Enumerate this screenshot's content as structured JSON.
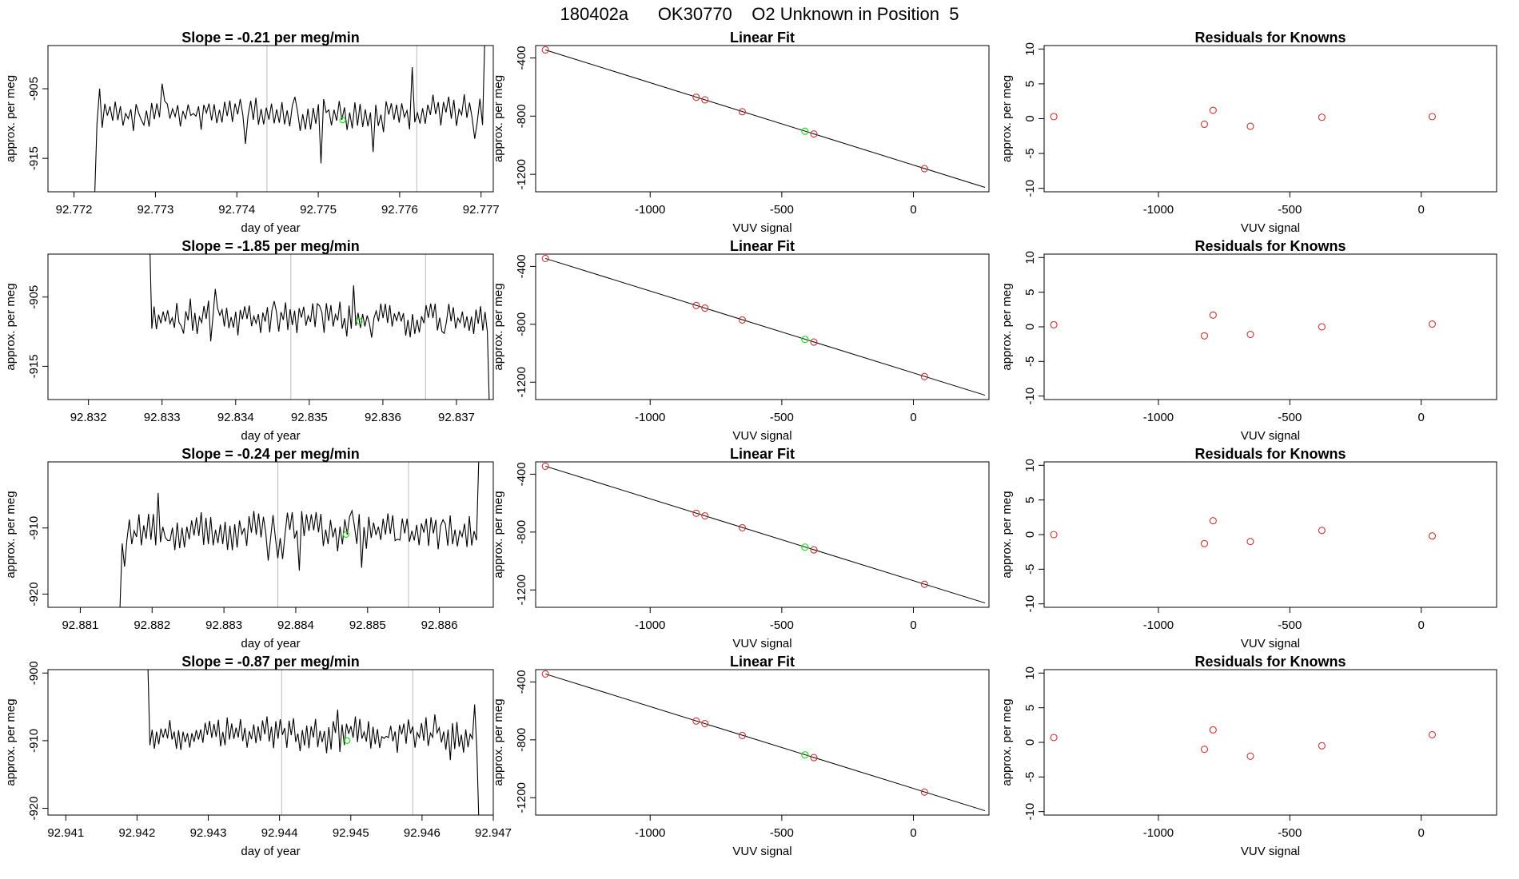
{
  "page_title": "180402a      OK30770    O2 Unknown in Position  5",
  "colors": {
    "line": "#000000",
    "known": "#cc3333",
    "unknown": "#22dd22",
    "vline": "#bbbbbb",
    "axis": "#000000"
  },
  "chart_data": [
    {
      "row": 1,
      "timeseries": {
        "type": "line",
        "title": "Slope =  -0.21  per meg/min",
        "xlabel": "day of year",
        "ylabel": "approx. per meg",
        "xlim": [
          92.77168,
          92.77715
        ],
        "ylim": [
          -919.8,
          -898.8
        ],
        "xticks": [
          "92.772",
          "92.773",
          "92.774",
          "92.775",
          "92.776",
          "92.777"
        ],
        "yticks": [
          "-905",
          "-915"
        ],
        "x_start": 92.77225,
        "x_end": 92.77705,
        "baseline": -908.5,
        "amplitude": 3.5,
        "seed": 11,
        "start_y": -922,
        "end_y": -896,
        "vlines": [
          92.77437,
          92.77621
        ],
        "unknown_point": {
          "x": 92.7753,
          "y": -909.5
        }
      },
      "linear_fit": {
        "type": "scatter",
        "title": "Linear Fit",
        "xlabel": "VUV signal",
        "ylabel": "approx. per meg",
        "xlim": [
          -1435,
          287
        ],
        "ylim": [
          -1320,
          -315
        ],
        "xticks": [
          "-1000",
          "-500",
          "0"
        ],
        "yticks": [
          "-400",
          "-800",
          "-1200"
        ],
        "fit_line": {
          "x1": -1398,
          "y1": -345,
          "x2": 272,
          "y2": -1290
        },
        "known_points": [
          {
            "x": -1398,
            "y": -345
          },
          {
            "x": -825,
            "y": -670
          },
          {
            "x": -792,
            "y": -688
          },
          {
            "x": -650,
            "y": -770
          },
          {
            "x": -378,
            "y": -923
          },
          {
            "x": 42,
            "y": -1161
          }
        ],
        "unknown_point": {
          "x": -412,
          "y": -904
        }
      },
      "residuals": {
        "type": "scatter",
        "title": "Residuals for Knowns",
        "xlabel": "VUV signal",
        "ylabel": "approx. per meg",
        "xlim": [
          -1435,
          287
        ],
        "ylim": [
          -10.5,
          10.5
        ],
        "xticks": [
          "-1000",
          "-500",
          "0"
        ],
        "yticks": [
          "10",
          "5",
          "0",
          "-5",
          "-10"
        ],
        "points": [
          {
            "x": -1398,
            "y": 0.3
          },
          {
            "x": -825,
            "y": -0.8
          },
          {
            "x": -792,
            "y": 1.2
          },
          {
            "x": -650,
            "y": -1.1
          },
          {
            "x": -378,
            "y": 0.2
          },
          {
            "x": 42,
            "y": 0.3
          }
        ]
      }
    },
    {
      "row": 2,
      "timeseries": {
        "type": "line",
        "title": "Slope =  -1.85  per meg/min",
        "xlabel": "day of year",
        "ylabel": "approx. per meg",
        "xlim": [
          92.83145,
          92.8375
        ],
        "ylim": [
          -919.8,
          -898.8
        ],
        "xticks": [
          "92.832",
          "92.833",
          "92.834",
          "92.835",
          "92.836",
          "92.837"
        ],
        "yticks": [
          "-905",
          "-915"
        ],
        "x_start": 92.83283,
        "x_end": 92.83745,
        "baseline": -908.0,
        "amplitude": 3.6,
        "seed": 23,
        "start_y": -896,
        "end_y": -922,
        "vlines": [
          92.83475,
          92.83658
        ],
        "unknown_point": {
          "x": 92.83568,
          "y": -908.5
        }
      },
      "linear_fit": {
        "type": "scatter",
        "title": "Linear Fit",
        "xlabel": "VUV signal",
        "ylabel": "approx. per meg",
        "xlim": [
          -1435,
          287
        ],
        "ylim": [
          -1320,
          -315
        ],
        "xticks": [
          "-1000",
          "-500",
          "0"
        ],
        "yticks": [
          "-400",
          "-800",
          "-1200"
        ],
        "fit_line": {
          "x1": -1398,
          "y1": -345,
          "x2": 272,
          "y2": -1290
        },
        "known_points": [
          {
            "x": -1398,
            "y": -345
          },
          {
            "x": -825,
            "y": -670
          },
          {
            "x": -792,
            "y": -688
          },
          {
            "x": -650,
            "y": -770
          },
          {
            "x": -378,
            "y": -923
          },
          {
            "x": 42,
            "y": -1161
          }
        ],
        "unknown_point": {
          "x": -412,
          "y": -904
        }
      },
      "residuals": {
        "type": "scatter",
        "title": "Residuals for Knowns",
        "xlabel": "VUV signal",
        "ylabel": "approx. per meg",
        "xlim": [
          -1435,
          287
        ],
        "ylim": [
          -10.5,
          10.5
        ],
        "xticks": [
          "-1000",
          "-500",
          "0"
        ],
        "yticks": [
          "10",
          "5",
          "0",
          "-5",
          "-10"
        ],
        "points": [
          {
            "x": -1398,
            "y": 0.3
          },
          {
            "x": -825,
            "y": -1.3
          },
          {
            "x": -792,
            "y": 1.7
          },
          {
            "x": -650,
            "y": -1.1
          },
          {
            "x": -378,
            "y": 0.0
          },
          {
            "x": 42,
            "y": 0.4
          }
        ]
      }
    },
    {
      "row": 3,
      "timeseries": {
        "type": "line",
        "title": "Slope =  -0.24  per meg/min",
        "xlabel": "day of year",
        "ylabel": "approx. per meg",
        "xlim": [
          92.88055,
          92.88675
        ],
        "ylim": [
          -922,
          -900
        ],
        "xticks": [
          "92.881",
          "92.882",
          "92.883",
          "92.884",
          "92.885",
          "92.886"
        ],
        "yticks": [
          "-910",
          "-920"
        ],
        "x_start": 92.88155,
        "x_end": 92.88655,
        "baseline": -910.5,
        "amplitude": 4.2,
        "seed": 37,
        "start_y": -923,
        "end_y": -899,
        "vlines": [
          92.88375,
          92.88557
        ],
        "unknown_point": {
          "x": 92.8847,
          "y": -911.0
        }
      },
      "linear_fit": {
        "type": "scatter",
        "title": "Linear Fit",
        "xlabel": "VUV signal",
        "ylabel": "approx. per meg",
        "xlim": [
          -1435,
          287
        ],
        "ylim": [
          -1320,
          -315
        ],
        "xticks": [
          "-1000",
          "-500",
          "0"
        ],
        "yticks": [
          "-400",
          "-800",
          "-1200"
        ],
        "fit_line": {
          "x1": -1398,
          "y1": -345,
          "x2": 272,
          "y2": -1290
        },
        "known_points": [
          {
            "x": -1398,
            "y": -345
          },
          {
            "x": -825,
            "y": -670
          },
          {
            "x": -792,
            "y": -688
          },
          {
            "x": -650,
            "y": -770
          },
          {
            "x": -378,
            "y": -923
          },
          {
            "x": 42,
            "y": -1161
          }
        ],
        "unknown_point": {
          "x": -412,
          "y": -904
        }
      },
      "residuals": {
        "type": "scatter",
        "title": "Residuals for Knowns",
        "xlabel": "VUV signal",
        "ylabel": "approx. per meg",
        "xlim": [
          -1435,
          287
        ],
        "ylim": [
          -10.5,
          10.5
        ],
        "xticks": [
          "-1000",
          "-500",
          "0"
        ],
        "yticks": [
          "10",
          "5",
          "0",
          "-5",
          "-10"
        ],
        "points": [
          {
            "x": -1398,
            "y": 0.0
          },
          {
            "x": -825,
            "y": -1.3
          },
          {
            "x": -792,
            "y": 2.0
          },
          {
            "x": -650,
            "y": -1.0
          },
          {
            "x": -378,
            "y": 0.6
          },
          {
            "x": 42,
            "y": -0.2
          }
        ]
      }
    },
    {
      "row": 4,
      "timeseries": {
        "type": "line",
        "title": "Slope =  -0.87  per meg/min",
        "xlabel": "day of year",
        "ylabel": "approx. per meg",
        "xlim": [
          92.94075,
          92.947
        ],
        "ylim": [
          -921,
          -899.5
        ],
        "xticks": [
          "92.941",
          "92.942",
          "92.943",
          "92.944",
          "92.945",
          "92.946",
          "92.947"
        ],
        "yticks": [
          "-900",
          "-910",
          "-920"
        ],
        "x_start": 92.94215,
        "x_end": 92.9468,
        "baseline": -909.0,
        "amplitude": 3.8,
        "seed": 53,
        "start_y": -898,
        "end_y": -923,
        "vlines": [
          92.94403,
          92.94587
        ],
        "unknown_point": {
          "x": 92.94495,
          "y": -910.0
        }
      },
      "linear_fit": {
        "type": "scatter",
        "title": "Linear Fit",
        "xlabel": "VUV signal",
        "ylabel": "approx. per meg",
        "xlim": [
          -1435,
          287
        ],
        "ylim": [
          -1320,
          -315
        ],
        "xticks": [
          "-1000",
          "-500",
          "0"
        ],
        "yticks": [
          "-400",
          "-800",
          "-1200"
        ],
        "fit_line": {
          "x1": -1398,
          "y1": -345,
          "x2": 272,
          "y2": -1290
        },
        "known_points": [
          {
            "x": -1398,
            "y": -345
          },
          {
            "x": -825,
            "y": -670
          },
          {
            "x": -792,
            "y": -688
          },
          {
            "x": -650,
            "y": -770
          },
          {
            "x": -378,
            "y": -923
          },
          {
            "x": 42,
            "y": -1161
          }
        ],
        "unknown_point": {
          "x": -412,
          "y": -904
        }
      },
      "residuals": {
        "type": "scatter",
        "title": "Residuals for Knowns",
        "xlabel": "VUV signal",
        "ylabel": "approx. per meg",
        "xlim": [
          -1435,
          287
        ],
        "ylim": [
          -10.5,
          10.5
        ],
        "xticks": [
          "-1000",
          "-500",
          "0"
        ],
        "yticks": [
          "10",
          "5",
          "0",
          "-5",
          "-10"
        ],
        "points": [
          {
            "x": -1398,
            "y": 0.7
          },
          {
            "x": -825,
            "y": -1.0
          },
          {
            "x": -792,
            "y": 1.8
          },
          {
            "x": -650,
            "y": -2.0
          },
          {
            "x": -378,
            "y": -0.5
          },
          {
            "x": 42,
            "y": 1.1
          }
        ]
      }
    }
  ]
}
